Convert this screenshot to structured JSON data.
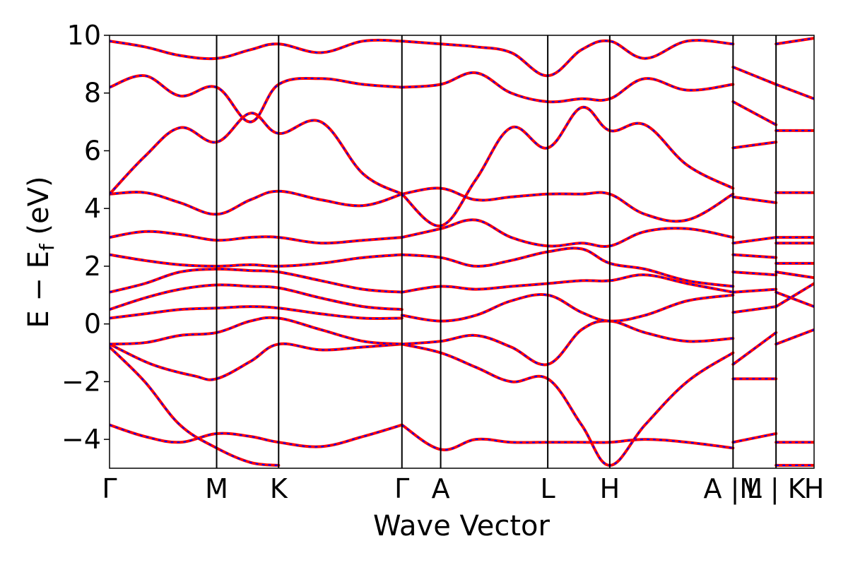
{
  "chart_data": {
    "type": "line",
    "title": "",
    "xlabel": "Wave Vector",
    "ylabel": "E − E",
    "ylabel_sub": "f",
    "ylabel_unit": " (eV)",
    "ylim": [
      -5,
      10
    ],
    "yticks": [
      -4,
      -2,
      0,
      2,
      4,
      6,
      8,
      10
    ],
    "ytick_labels": [
      "−4",
      "−2",
      "0",
      "2",
      "4",
      "6",
      "8",
      "10"
    ],
    "xlim": [
      0,
      10
    ],
    "kpoints": [
      {
        "label": "Γ",
        "x": 0.0
      },
      {
        "label": "M",
        "x": 1.52
      },
      {
        "label": "K",
        "x": 2.4
      },
      {
        "label": "Γ",
        "x": 4.15
      },
      {
        "label": "A",
        "x": 4.7
      },
      {
        "label": "L",
        "x": 6.22
      },
      {
        "label": "H",
        "x": 7.1
      },
      {
        "label": "A |M",
        "x": 8.85
      },
      {
        "label": "L | K",
        "x": 9.46
      },
      {
        "label": "H",
        "x": 10.0
      }
    ],
    "colors": {
      "primary": "#ff0000",
      "secondary": "#0000ff",
      "kline": "#000000"
    },
    "series": [
      {
        "x": [
          0.0,
          0.5,
          1.0,
          1.52,
          2.0,
          2.4,
          3.0,
          3.6,
          4.15
        ],
        "values": [
          -3.5,
          -3.9,
          -4.1,
          -3.8,
          -3.9,
          -4.1,
          -4.25,
          -3.9,
          -3.5
        ]
      },
      {
        "x": [
          0.0,
          0.5,
          1.0,
          1.52,
          2.0,
          2.4
        ],
        "values": [
          -0.8,
          -2.0,
          -3.5,
          -4.3,
          -4.8,
          -4.9
        ]
      },
      {
        "x": [
          0.0,
          0.6,
          1.2,
          1.52,
          2.0,
          2.4,
          3.0,
          3.6,
          4.15
        ],
        "values": [
          -0.7,
          -1.4,
          -1.8,
          -1.9,
          -1.3,
          -0.7,
          -0.9,
          -0.8,
          -0.7
        ]
      },
      {
        "x": [
          0.0,
          0.5,
          1.0,
          1.52,
          2.0,
          2.4,
          3.0,
          3.6,
          4.15
        ],
        "values": [
          -0.7,
          -0.65,
          -0.4,
          -0.3,
          0.1,
          0.2,
          -0.2,
          -0.6,
          -0.7
        ]
      },
      {
        "x": [
          0.0,
          0.5,
          1.0,
          1.52,
          2.0,
          2.4,
          3.0,
          3.6,
          4.15
        ],
        "values": [
          0.2,
          0.35,
          0.5,
          0.55,
          0.6,
          0.55,
          0.35,
          0.2,
          0.2
        ]
      },
      {
        "x": [
          0.0,
          0.5,
          1.0,
          1.52,
          2.0,
          2.4,
          3.0,
          3.6,
          4.15
        ],
        "values": [
          0.5,
          0.9,
          1.2,
          1.35,
          1.3,
          1.25,
          0.9,
          0.6,
          0.5
        ]
      },
      {
        "x": [
          0.0,
          0.5,
          1.0,
          1.52,
          2.0,
          2.4,
          3.0,
          3.6,
          4.15
        ],
        "values": [
          1.1,
          1.4,
          1.8,
          1.9,
          1.85,
          1.8,
          1.5,
          1.2,
          1.1
        ]
      },
      {
        "x": [
          0.0,
          0.5,
          1.0,
          1.52,
          2.0,
          2.4,
          3.0,
          3.6,
          4.15
        ],
        "values": [
          2.4,
          2.2,
          2.05,
          2.0,
          2.05,
          2.0,
          2.1,
          2.3,
          2.4
        ]
      },
      {
        "x": [
          0.0,
          0.5,
          1.0,
          1.52,
          2.0,
          2.4,
          3.0,
          3.6,
          4.15
        ],
        "values": [
          3.0,
          3.2,
          3.1,
          2.9,
          3.0,
          3.0,
          2.8,
          2.9,
          3.0
        ]
      },
      {
        "x": [
          0.0,
          0.5,
          1.0,
          1.52,
          2.0,
          2.4,
          3.0,
          3.6,
          4.15
        ],
        "values": [
          4.5,
          4.55,
          4.2,
          3.8,
          4.3,
          4.6,
          4.3,
          4.1,
          4.5
        ]
      },
      {
        "x": [
          0.0,
          0.5,
          1.0,
          1.52,
          2.0,
          2.4,
          3.0,
          3.6,
          4.15
        ],
        "values": [
          4.5,
          5.8,
          6.8,
          6.3,
          7.3,
          6.6,
          7.0,
          5.2,
          4.5
        ]
      },
      {
        "x": [
          0.0,
          0.5,
          1.0,
          1.52,
          2.0,
          2.4,
          3.0,
          3.6,
          4.15
        ],
        "values": [
          8.2,
          8.6,
          7.9,
          8.2,
          7.0,
          8.3,
          8.5,
          8.3,
          8.2
        ]
      },
      {
        "x": [
          0.0,
          0.5,
          1.0,
          1.52,
          2.0,
          2.4,
          3.0,
          3.6,
          4.15
        ],
        "values": [
          9.8,
          9.6,
          9.3,
          9.2,
          9.5,
          9.7,
          9.4,
          9.8,
          9.8
        ]
      },
      {
        "x": [
          4.15,
          4.7,
          5.2,
          5.7,
          6.22,
          6.7,
          7.1,
          7.6,
          8.2,
          8.85
        ],
        "values": [
          -3.5,
          -4.35,
          -4.0,
          -4.1,
          -4.1,
          -4.1,
          -4.1,
          -4.0,
          -4.1,
          -4.3
        ]
      },
      {
        "x": [
          4.15,
          4.7,
          5.2,
          5.7,
          6.22,
          6.7,
          7.1,
          7.6,
          8.2,
          8.85
        ],
        "values": [
          -0.7,
          -1.0,
          -1.5,
          -2.0,
          -1.9,
          -3.5,
          -4.9,
          -3.5,
          -2.0,
          -1.0
        ]
      },
      {
        "x": [
          4.15,
          4.7,
          5.2,
          5.7,
          6.22,
          6.7,
          7.1,
          7.6,
          8.2,
          8.85
        ],
        "values": [
          -0.7,
          -0.6,
          -0.4,
          -0.8,
          -1.4,
          -0.2,
          0.1,
          -0.3,
          -0.6,
          -0.5
        ]
      },
      {
        "x": [
          4.15,
          4.7,
          5.2,
          5.7,
          6.22,
          6.7,
          7.1,
          7.6,
          8.2,
          8.85
        ],
        "values": [
          0.3,
          0.1,
          0.3,
          0.8,
          1.0,
          0.4,
          0.1,
          0.3,
          0.8,
          1.0
        ]
      },
      {
        "x": [
          4.15,
          4.7,
          5.2,
          5.7,
          6.22,
          6.7,
          7.1,
          7.6,
          8.2,
          8.85
        ],
        "values": [
          1.1,
          1.3,
          1.2,
          1.3,
          1.4,
          1.5,
          1.5,
          1.7,
          1.4,
          1.1
        ]
      },
      {
        "x": [
          4.15,
          4.7,
          5.2,
          5.7,
          6.22,
          6.7,
          7.1,
          7.6,
          8.2,
          8.85
        ],
        "values": [
          2.4,
          2.3,
          2.0,
          2.2,
          2.5,
          2.6,
          2.1,
          1.9,
          1.5,
          1.3
        ]
      },
      {
        "x": [
          4.15,
          4.7,
          5.2,
          5.7,
          6.22,
          6.7,
          7.1,
          7.6,
          8.2,
          8.85
        ],
        "values": [
          3.0,
          3.3,
          3.6,
          3.0,
          2.7,
          2.8,
          2.7,
          3.2,
          3.3,
          3.0
        ]
      },
      {
        "x": [
          4.15,
          4.7,
          5.2,
          5.7,
          6.22,
          6.7,
          7.1,
          7.6,
          8.2,
          8.85
        ],
        "values": [
          4.5,
          4.7,
          4.3,
          4.4,
          4.5,
          4.5,
          4.5,
          3.8,
          3.6,
          4.5
        ]
      },
      {
        "x": [
          4.15,
          4.7,
          5.2,
          5.7,
          6.22,
          6.7,
          7.1,
          7.6,
          8.2,
          8.85
        ],
        "values": [
          4.5,
          3.4,
          5.0,
          6.8,
          6.1,
          7.5,
          6.7,
          6.9,
          5.5,
          4.7
        ]
      },
      {
        "x": [
          4.15,
          4.7,
          5.2,
          5.7,
          6.22,
          6.7,
          7.1,
          7.6,
          8.2,
          8.85
        ],
        "values": [
          8.2,
          8.3,
          8.7,
          8.0,
          7.7,
          7.8,
          7.8,
          8.5,
          8.1,
          8.3
        ]
      },
      {
        "x": [
          4.15,
          4.7,
          5.2,
          5.7,
          6.22,
          6.7,
          7.1,
          7.6,
          8.2,
          8.85
        ],
        "values": [
          9.8,
          9.7,
          9.6,
          9.4,
          8.6,
          9.5,
          9.8,
          9.2,
          9.8,
          9.7
        ]
      },
      {
        "x": [
          8.85,
          9.46
        ],
        "values": [
          -1.4,
          -0.3
        ]
      },
      {
        "x": [
          8.85,
          9.46
        ],
        "values": [
          -1.9,
          -1.9
        ]
      },
      {
        "x": [
          8.85,
          9.46
        ],
        "values": [
          -4.1,
          -3.8
        ]
      },
      {
        "x": [
          8.85,
          9.46
        ],
        "values": [
          0.4,
          0.6
        ]
      },
      {
        "x": [
          8.85,
          9.46
        ],
        "values": [
          1.1,
          1.2
        ]
      },
      {
        "x": [
          8.85,
          9.46
        ],
        "values": [
          1.8,
          1.7
        ]
      },
      {
        "x": [
          8.85,
          9.46
        ],
        "values": [
          2.4,
          2.3
        ]
      },
      {
        "x": [
          8.85,
          9.46
        ],
        "values": [
          2.8,
          3.0
        ]
      },
      {
        "x": [
          8.85,
          9.46
        ],
        "values": [
          4.4,
          4.2
        ]
      },
      {
        "x": [
          8.85,
          9.46
        ],
        "values": [
          6.1,
          6.3
        ]
      },
      {
        "x": [
          8.85,
          9.46
        ],
        "values": [
          7.7,
          6.9
        ]
      },
      {
        "x": [
          8.85,
          9.46
        ],
        "values": [
          8.9,
          8.3
        ]
      },
      {
        "x": [
          9.46,
          10.0
        ],
        "values": [
          -0.7,
          -0.2
        ]
      },
      {
        "x": [
          9.46,
          10.0
        ],
        "values": [
          -4.1,
          -4.1
        ]
      },
      {
        "x": [
          9.46,
          10.0
        ],
        "values": [
          -4.9,
          -4.9
        ]
      },
      {
        "x": [
          9.46,
          10.0
        ],
        "values": [
          0.6,
          1.4
        ]
      },
      {
        "x": [
          9.46,
          10.0
        ],
        "values": [
          1.1,
          0.6
        ]
      },
      {
        "x": [
          9.46,
          10.0
        ],
        "values": [
          1.8,
          1.6
        ]
      },
      {
        "x": [
          9.46,
          10.0
        ],
        "values": [
          2.1,
          2.1
        ]
      },
      {
        "x": [
          9.46,
          10.0
        ],
        "values": [
          2.8,
          2.8
        ]
      },
      {
        "x": [
          9.46,
          10.0
        ],
        "values": [
          3.0,
          3.0
        ]
      },
      {
        "x": [
          9.46,
          10.0
        ],
        "values": [
          4.55,
          4.55
        ]
      },
      {
        "x": [
          9.46,
          10.0
        ],
        "values": [
          6.7,
          6.7
        ]
      },
      {
        "x": [
          9.46,
          10.0
        ],
        "values": [
          8.3,
          7.8
        ]
      },
      {
        "x": [
          9.46,
          10.0
        ],
        "values": [
          9.7,
          9.9
        ]
      }
    ]
  }
}
